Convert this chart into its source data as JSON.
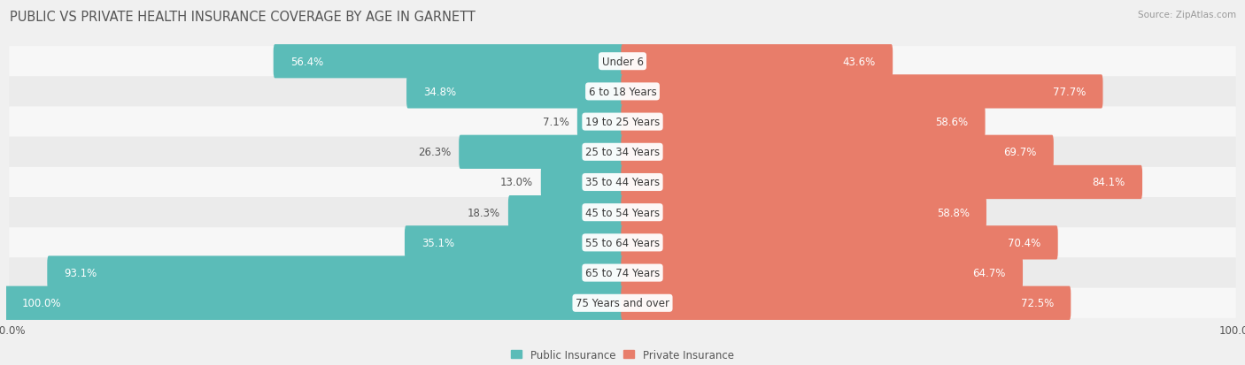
{
  "title": "PUBLIC VS PRIVATE HEALTH INSURANCE COVERAGE BY AGE IN GARNETT",
  "source": "Source: ZipAtlas.com",
  "categories": [
    "Under 6",
    "6 to 18 Years",
    "19 to 25 Years",
    "25 to 34 Years",
    "35 to 44 Years",
    "45 to 54 Years",
    "55 to 64 Years",
    "65 to 74 Years",
    "75 Years and over"
  ],
  "public_values": [
    56.4,
    34.8,
    7.1,
    26.3,
    13.0,
    18.3,
    35.1,
    93.1,
    100.0
  ],
  "private_values": [
    43.6,
    77.7,
    58.6,
    69.7,
    84.1,
    58.8,
    70.4,
    64.7,
    72.5
  ],
  "public_color": "#5bbcb8",
  "private_color": "#e87d6a",
  "bg_color": "#f0f0f0",
  "row_color_even": "#f7f7f7",
  "row_color_odd": "#ebebeb",
  "title_fontsize": 10.5,
  "label_fontsize": 8.5,
  "cat_fontsize": 8.5,
  "tick_fontsize": 8.5,
  "legend_fontsize": 8.5
}
